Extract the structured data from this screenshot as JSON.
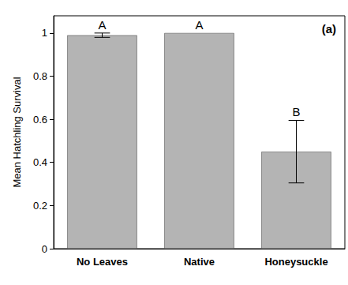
{
  "chart_data": {
    "type": "bar",
    "panel_label": "(a)",
    "y_label": "Mean Hatchling Survival",
    "categories": [
      "No Leaves",
      "Native",
      "Honeysuckle"
    ],
    "values": [
      0.99,
      1.0,
      0.45
    ],
    "errors": [
      0.01,
      0,
      0.145
    ],
    "significance_letters": [
      "A",
      "A",
      "B"
    ],
    "color": "#b4b4b4",
    "ylim": [
      0,
      1.08
    ],
    "yticks": [
      0,
      0.2,
      0.4,
      0.6,
      0.8,
      1
    ],
    "grid": false
  }
}
